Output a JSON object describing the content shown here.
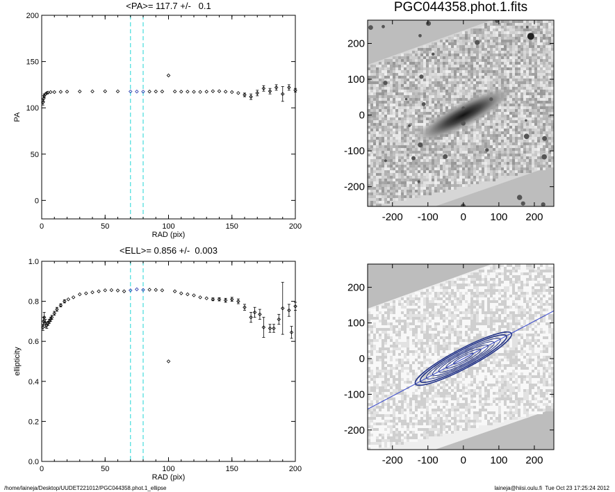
{
  "figure_title": "PGC044358.phot.1.fits",
  "footer": {
    "left": "/home/laineja/Desktop/UUDET221012/PGC044358.phot.1_ellipse",
    "right": "laineja@hiisi.oulu.fi  Tue Oct 23 17:25:24 2012"
  },
  "colors": {
    "cyan_marker": "#44dddd",
    "blue_marker": "#2233aa",
    "contour": "#223388"
  },
  "chart_data": [
    {
      "type": "scatter",
      "name": "pa_profile",
      "title": "<PA>= 117.7 +/-   0.1",
      "xlabel": "RAD (pix)",
      "ylabel": "PA",
      "xlim": [
        0,
        200
      ],
      "ylim": [
        -20,
        200
      ],
      "xticks": [
        "0",
        "50",
        "100",
        "150",
        "200"
      ],
      "yticks": [
        "0",
        "50",
        "100",
        "150",
        "200"
      ],
      "vlines": [
        70,
        80
      ],
      "highlight_range": [
        70,
        80
      ],
      "points": [
        [
          1,
          106,
          3
        ],
        [
          1.5,
          110,
          3
        ],
        [
          2,
          113,
          2
        ],
        [
          3,
          115,
          1.5
        ],
        [
          4,
          116,
          1
        ],
        [
          5,
          116.5,
          0.5
        ],
        [
          7,
          117,
          0.5
        ],
        [
          10,
          117,
          0.3
        ],
        [
          15,
          117.3,
          0.3
        ],
        [
          20,
          117.5,
          0.3
        ],
        [
          30,
          117.7,
          0.2
        ],
        [
          40,
          117.8,
          0.2
        ],
        [
          50,
          117.9,
          0.2
        ],
        [
          60,
          117.8,
          0.2
        ],
        [
          70,
          117.7,
          0.2
        ],
        [
          75,
          117.6,
          0.2
        ],
        [
          80,
          117.5,
          0.2
        ],
        [
          85,
          117.6,
          0.2
        ],
        [
          90,
          117.7,
          0.3
        ],
        [
          95,
          117.7,
          0.3
        ],
        [
          100,
          135,
          0
        ],
        [
          105,
          117.7,
          0.3
        ],
        [
          110,
          117.5,
          0.3
        ],
        [
          115,
          117.5,
          0.3
        ],
        [
          120,
          117.3,
          0.3
        ],
        [
          125,
          117.2,
          0.4
        ],
        [
          130,
          117.5,
          0.5
        ],
        [
          135,
          118,
          0.5
        ],
        [
          140,
          118,
          0.5
        ],
        [
          145,
          117.5,
          0.5
        ],
        [
          150,
          117,
          1
        ],
        [
          155,
          116,
          1
        ],
        [
          160,
          114,
          2
        ],
        [
          165,
          112,
          3
        ],
        [
          170,
          116,
          3
        ],
        [
          175,
          121,
          3
        ],
        [
          180,
          118,
          3
        ],
        [
          185,
          122,
          3
        ],
        [
          190,
          115,
          8
        ],
        [
          195,
          122,
          3
        ],
        [
          200,
          119,
          2
        ]
      ]
    },
    {
      "type": "scatter",
      "name": "ellipticity_profile",
      "title": "<ELL>= 0.856 +/-  0.003",
      "xlabel": "RAD (pix)",
      "ylabel": "ellipticity",
      "xlim": [
        0,
        200
      ],
      "ylim": [
        0,
        1
      ],
      "xticks": [
        "0",
        "50",
        "100",
        "150",
        "200"
      ],
      "yticks": [
        "0.0",
        "0.2",
        "0.4",
        "0.6",
        "0.8",
        "1.0"
      ],
      "vlines": [
        70,
        80
      ],
      "highlight_range": [
        70,
        80
      ],
      "points": [
        [
          1,
          0.67,
          0.015
        ],
        [
          1.5,
          0.7,
          0.02
        ],
        [
          2,
          0.72,
          0.025
        ],
        [
          3,
          0.69,
          0.02
        ],
        [
          4,
          0.68,
          0.015
        ],
        [
          5,
          0.69,
          0.01
        ],
        [
          6,
          0.7,
          0.01
        ],
        [
          7,
          0.71,
          0.01
        ],
        [
          8,
          0.72,
          0.01
        ],
        [
          10,
          0.74,
          0.01
        ],
        [
          12,
          0.76,
          0.01
        ],
        [
          15,
          0.78,
          0.008
        ],
        [
          18,
          0.8,
          0.008
        ],
        [
          21,
          0.81,
          0.006
        ],
        [
          25,
          0.82,
          0.006
        ],
        [
          30,
          0.835,
          0.005
        ],
        [
          35,
          0.84,
          0.005
        ],
        [
          40,
          0.845,
          0.004
        ],
        [
          45,
          0.85,
          0.004
        ],
        [
          50,
          0.855,
          0.004
        ],
        [
          55,
          0.856,
          0.004
        ],
        [
          60,
          0.854,
          0.004
        ],
        [
          65,
          0.85,
          0.004
        ],
        [
          70,
          0.855,
          0.004
        ],
        [
          75,
          0.86,
          0.004
        ],
        [
          80,
          0.857,
          0.004
        ],
        [
          85,
          0.858,
          0.004
        ],
        [
          90,
          0.857,
          0.004
        ],
        [
          95,
          0.855,
          0.005
        ],
        [
          100,
          0.5,
          0
        ],
        [
          105,
          0.85,
          0.005
        ],
        [
          110,
          0.84,
          0.005
        ],
        [
          115,
          0.835,
          0.005
        ],
        [
          120,
          0.83,
          0.006
        ],
        [
          125,
          0.82,
          0.006
        ],
        [
          130,
          0.815,
          0.006
        ],
        [
          135,
          0.81,
          0.007
        ],
        [
          140,
          0.81,
          0.008
        ],
        [
          145,
          0.805,
          0.01
        ],
        [
          150,
          0.81,
          0.01
        ],
        [
          155,
          0.8,
          0.012
        ],
        [
          160,
          0.77,
          0.015
        ],
        [
          165,
          0.72,
          0.025
        ],
        [
          168,
          0.745,
          0.025
        ],
        [
          172,
          0.735,
          0.025
        ],
        [
          175,
          0.67,
          0.05
        ],
        [
          180,
          0.665,
          0.02
        ],
        [
          183,
          0.665,
          0.02
        ],
        [
          187,
          0.71,
          0.025
        ],
        [
          190,
          0.765,
          0.13
        ],
        [
          195,
          0.755,
          0.03
        ],
        [
          197,
          0.645,
          0.03
        ],
        [
          200,
          0.775,
          0.02
        ]
      ]
    },
    {
      "type": "image",
      "name": "galaxy_image",
      "title": "PGC044358.phot.1.fits",
      "xlim": [
        -270,
        255
      ],
      "ylim": [
        -255,
        265
      ],
      "xticks": [
        "-200",
        "-100",
        "0",
        "100",
        "200"
      ],
      "yticks": [
        "-200",
        "-100",
        "0",
        "100",
        "200"
      ]
    },
    {
      "type": "image",
      "name": "isophote_contours",
      "title": "",
      "xlim": [
        -270,
        255
      ],
      "ylim": [
        -255,
        265
      ],
      "xticks": [
        "-200",
        "-100",
        "0",
        "100",
        "200"
      ],
      "yticks": [
        "-200",
        "-100",
        "0",
        "100",
        "200"
      ],
      "pa_line_deg": 27.7
    }
  ]
}
